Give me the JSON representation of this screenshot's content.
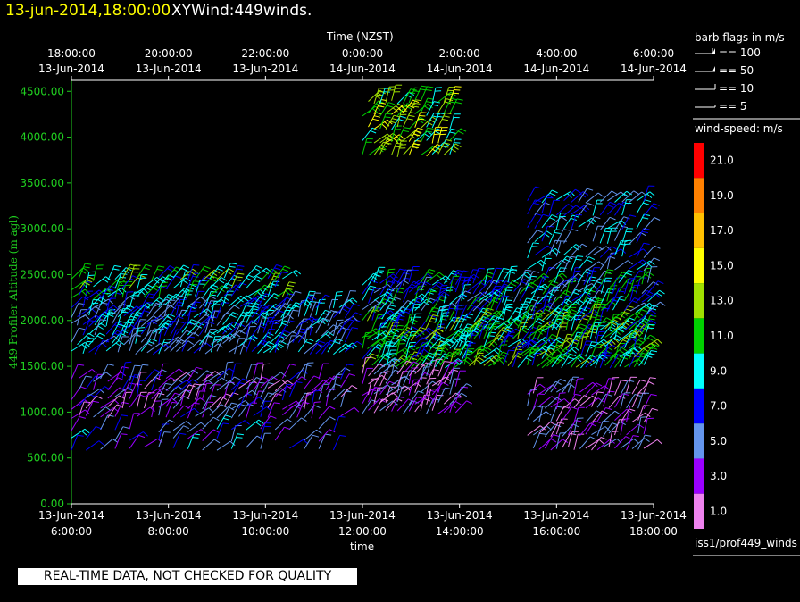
{
  "header": {
    "date_text": "13-jun-2014,18:00:00",
    "title": "XYWind:449winds."
  },
  "banner_text": "REAL-TIME DATA, NOT CHECKED FOR QUALITY",
  "source_label": "iss1/prof449_winds",
  "barb_legend": {
    "title": "barb flags in m/s",
    "items": [
      "== 100",
      "== 50",
      "== 10",
      "== 5"
    ]
  },
  "speed_legend": {
    "title": "wind-speed: m/s",
    "levels": [
      {
        "label": "21.0",
        "color": "#ff0000"
      },
      {
        "label": "19.0",
        "color": "#ff8000"
      },
      {
        "label": "17.0",
        "color": "#ffc000"
      },
      {
        "label": "15.0",
        "color": "#ffff00"
      },
      {
        "label": "13.0",
        "color": "#a0e000"
      },
      {
        "label": "11.0",
        "color": "#00d000"
      },
      {
        "label": "9.0",
        "color": "#00ffff"
      },
      {
        "label": "7.0",
        "color": "#0000ff"
      },
      {
        "label": "5.0",
        "color": "#6495ed"
      },
      {
        "label": "3.0",
        "color": "#9a00ff"
      },
      {
        "label": "1.0",
        "color": "#ee82ee"
      }
    ]
  },
  "chart_data": {
    "type": "scatter",
    "subtype": "wind-barbs",
    "title": "XYWind:449winds.",
    "xlabel": "time",
    "x2label": "Time (NZST)",
    "ylabel": "449 Profiler Altitude (m agl)",
    "ylim": [
      0,
      4600
    ],
    "yticks": [
      "0.00",
      "500.00",
      "1000.00",
      "1500.00",
      "2000.00",
      "2500.00",
      "3000.00",
      "3500.00",
      "4000.00",
      "4500.00"
    ],
    "xticks_bottom": [
      {
        "d": "13-Jun-2014",
        "t": "6:00:00"
      },
      {
        "d": "13-Jun-2014",
        "t": "8:00:00"
      },
      {
        "d": "13-Jun-2014",
        "t": "10:00:00"
      },
      {
        "d": "13-Jun-2014",
        "t": "12:00:00"
      },
      {
        "d": "13-Jun-2014",
        "t": "14:00:00"
      },
      {
        "d": "13-Jun-2014",
        "t": "16:00:00"
      },
      {
        "d": "13-Jun-2014",
        "t": "18:00:00"
      }
    ],
    "xticks_top": [
      {
        "t": "18:00:00",
        "d": "13-Jun-2014"
      },
      {
        "t": "20:00:00",
        "d": "13-Jun-2014"
      },
      {
        "t": "22:00:00",
        "d": "13-Jun-2014"
      },
      {
        "t": "0:00:00",
        "d": "14-Jun-2014"
      },
      {
        "t": "2:00:00",
        "d": "14-Jun-2014"
      },
      {
        "t": "4:00:00",
        "d": "14-Jun-2014"
      },
      {
        "t": "6:00:00",
        "d": "14-Jun-2014"
      }
    ],
    "grid": false,
    "legend_position": "right",
    "layers": [
      {
        "t0": 6.0,
        "t1": 11.7,
        "altitudes": [
          600,
          700,
          800
        ],
        "step_h": 0.3,
        "speed": 6
      },
      {
        "t0": 6.0,
        "t1": 11.7,
        "altitudes": [
          950,
          1050,
          1150,
          1250,
          1350
        ],
        "step_h": 0.15,
        "speed": 4
      },
      {
        "t0": 6.0,
        "t1": 11.7,
        "altitudes": [
          1650,
          1750,
          1850,
          1950,
          2050,
          2150
        ],
        "step_h": 0.12,
        "speed": 7
      },
      {
        "t0": 6.0,
        "t1": 10.5,
        "altitudes": [
          2250,
          2350,
          2450
        ],
        "step_h": 0.15,
        "speed": 10
      },
      {
        "t0": 12.0,
        "t1": 13.9,
        "altitudes": [
          3800,
          3950,
          4100,
          4250,
          4380
        ],
        "step_h": 0.12,
        "speed": 12
      },
      {
        "t0": 12.0,
        "t1": 17.9,
        "altitudes": [
          1500,
          1600,
          1700,
          1800,
          1900,
          2000
        ],
        "step_h": 0.1,
        "speed": 10
      },
      {
        "t0": 12.0,
        "t1": 17.9,
        "altitudes": [
          2100,
          2200,
          2300,
          2400
        ],
        "step_h": 0.12,
        "speed": 8
      },
      {
        "t0": 12.0,
        "t1": 14.0,
        "altitudes": [
          1000,
          1100,
          1200,
          1300,
          1400
        ],
        "step_h": 0.12,
        "speed": 3
      },
      {
        "t0": 15.4,
        "t1": 17.9,
        "altitudes": [
          2550,
          2700,
          2850,
          3000,
          3150,
          3300
        ],
        "step_h": 0.15,
        "speed": 7
      },
      {
        "t0": 15.4,
        "t1": 17.9,
        "altitudes": [
          600,
          750,
          900,
          1050,
          1200
        ],
        "step_h": 0.12,
        "speed": 3
      }
    ]
  }
}
